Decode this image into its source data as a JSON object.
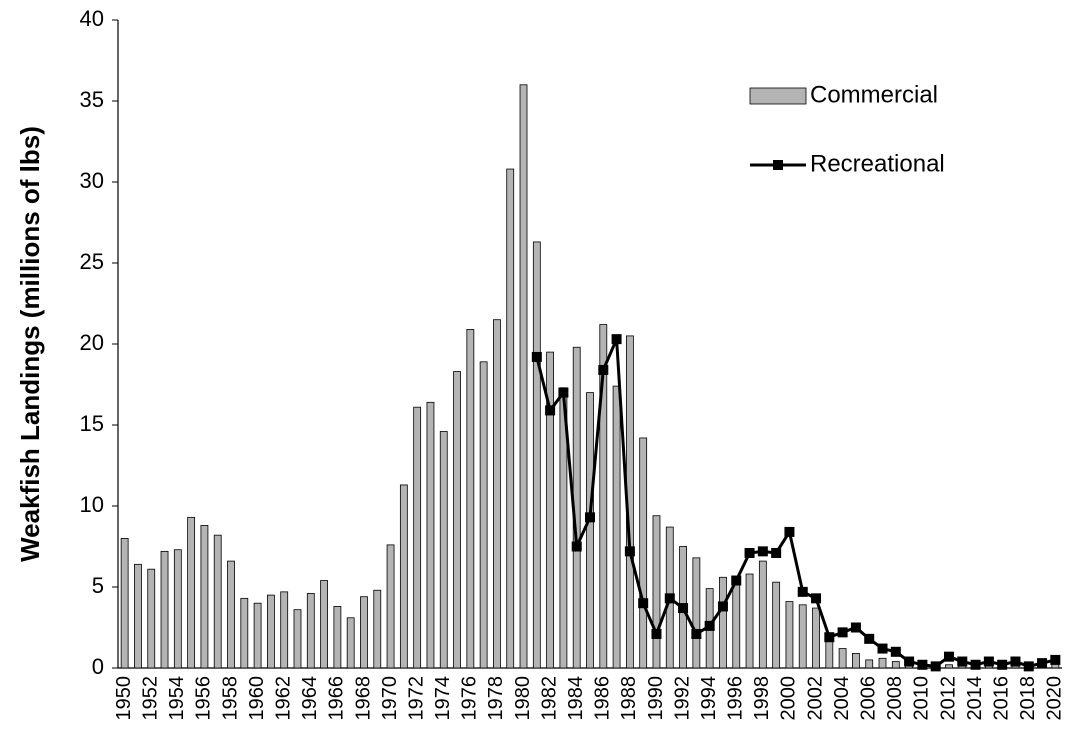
{
  "chart_data": {
    "type": "bar",
    "y_label": "Weakfish Landings (millions of lbs)",
    "categories": [
      "1950",
      null,
      "1952",
      null,
      "1954",
      null,
      "1956",
      null,
      "1958",
      null,
      "1960",
      null,
      "1962",
      null,
      "1964",
      null,
      "1966",
      null,
      "1968",
      null,
      "1970",
      null,
      "1972",
      null,
      "1974",
      null,
      "1976",
      null,
      "1978",
      null,
      "1980",
      null,
      "1982",
      null,
      "1984",
      null,
      "1986",
      null,
      "1988",
      null,
      "1990",
      null,
      "1992",
      null,
      "1994",
      null,
      "1996",
      null,
      "1998",
      null,
      "2000",
      null,
      "2002",
      null,
      "2004",
      null,
      "2006",
      null,
      "2008",
      null,
      "2010",
      null,
      "2012",
      null,
      "2014",
      null,
      "2016",
      null,
      "2018",
      null,
      "2020"
    ],
    "series": [
      {
        "name": "Commercial",
        "type": "bar",
        "color": "#b4b4b4",
        "values": [
          8.0,
          6.4,
          6.1,
          7.2,
          7.3,
          9.3,
          8.8,
          8.2,
          6.6,
          4.3,
          4.0,
          4.5,
          4.7,
          3.6,
          4.6,
          5.4,
          3.8,
          3.1,
          4.4,
          4.8,
          7.6,
          11.3,
          16.1,
          16.4,
          14.6,
          18.3,
          20.9,
          18.9,
          21.5,
          30.8,
          36.0,
          26.3,
          19.5,
          17.3,
          19.8,
          17.0,
          21.2,
          17.4,
          20.5,
          14.2,
          9.4,
          8.7,
          7.5,
          6.8,
          4.9,
          5.6,
          5.6,
          5.8,
          6.6,
          5.3,
          4.1,
          3.9,
          3.7,
          1.8,
          1.2,
          0.9,
          0.5,
          0.6,
          0.4,
          0.3,
          0.2,
          0.1,
          0.2,
          0.2,
          0.2,
          0.2,
          0.2,
          0.2,
          0.1,
          0.2,
          0.3
        ]
      },
      {
        "name": "Recreational",
        "type": "line",
        "color": "#000000",
        "values": [
          null,
          null,
          null,
          null,
          null,
          null,
          null,
          null,
          null,
          null,
          null,
          null,
          null,
          null,
          null,
          null,
          null,
          null,
          null,
          null,
          null,
          null,
          null,
          null,
          null,
          null,
          null,
          null,
          null,
          null,
          null,
          19.2,
          15.9,
          17.0,
          7.5,
          9.3,
          18.4,
          20.3,
          7.2,
          4.0,
          2.1,
          4.3,
          3.7,
          2.1,
          2.6,
          3.8,
          5.4,
          7.1,
          7.2,
          7.1,
          8.4,
          4.7,
          4.3,
          1.9,
          2.2,
          2.5,
          1.8,
          1.2,
          1.0,
          0.4,
          0.2,
          0.1,
          0.7,
          0.4,
          0.2,
          0.4,
          0.2,
          0.4,
          0.1,
          0.3,
          0.5
        ]
      }
    ],
    "ylim": [
      0,
      40
    ],
    "yticks": [
      0,
      5,
      10,
      15,
      20,
      25,
      30,
      35,
      40
    ],
    "grid": false,
    "legend": "upper right"
  }
}
